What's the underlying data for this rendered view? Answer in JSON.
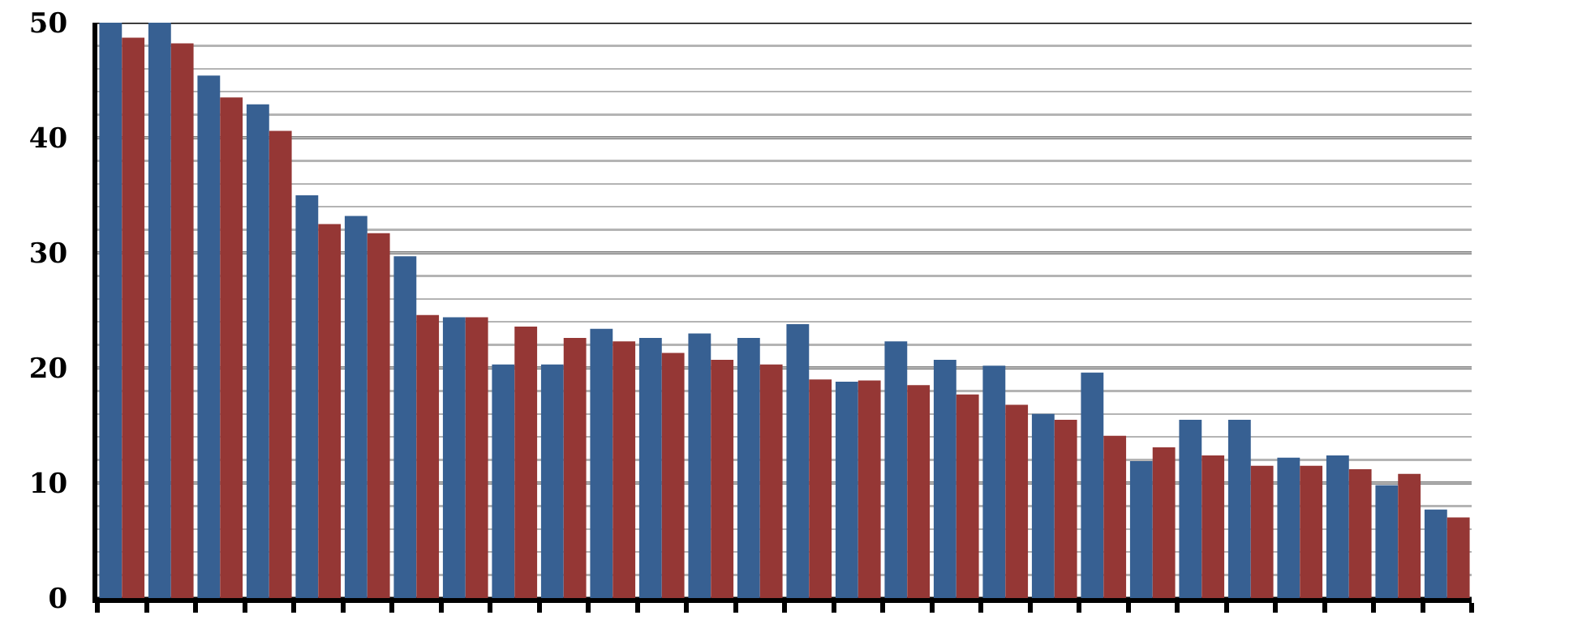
{
  "chart_data": {
    "type": "bar",
    "categories": [
      null,
      null,
      null,
      null,
      null,
      null,
      null,
      null,
      null,
      null,
      null,
      null,
      null,
      null,
      null,
      null,
      null,
      null,
      null,
      null,
      null,
      null,
      null,
      null,
      null,
      null,
      null,
      null
    ],
    "series": [
      {
        "color": "#376092",
        "values": [
          50,
          50,
          45.4,
          42.9,
          35.0,
          33.2,
          29.7,
          24.4,
          20.3,
          20.3,
          23.4,
          22.6,
          23.0,
          22.6,
          23.8,
          18.8,
          22.3,
          20.7,
          20.2,
          16.0,
          19.6,
          11.9,
          15.5,
          15.5,
          12.2,
          12.4,
          9.8,
          7.7
        ]
      },
      {
        "color": "#953735",
        "values": [
          48.7,
          48.2,
          43.5,
          40.6,
          32.5,
          31.7,
          24.6,
          24.4,
          23.6,
          22.6,
          22.3,
          21.3,
          20.7,
          20.3,
          19.0,
          18.9,
          18.5,
          17.7,
          16.8,
          15.5,
          14.1,
          13.1,
          12.4,
          11.5,
          11.5,
          11.2,
          10.8,
          7.0
        ]
      }
    ],
    "ylim": [
      0,
      50
    ],
    "yticks": [
      0,
      {
        "value": 2,
        "label": null
      },
      {
        "value": 4,
        "label": null
      },
      {
        "value": 6,
        "label": null
      },
      {
        "value": 8,
        "label": null
      },
      10,
      {
        "value": 12,
        "label": null
      },
      {
        "value": 14,
        "label": null
      },
      {
        "value": 16,
        "label": null
      },
      {
        "value": 18,
        "label": null
      },
      20,
      {
        "value": 22,
        "label": null
      },
      {
        "value": 24,
        "label": null
      },
      {
        "value": 26,
        "label": null
      },
      {
        "value": 28,
        "label": null
      },
      30,
      {
        "value": 32,
        "label": null
      },
      {
        "value": 34,
        "label": null
      },
      {
        "value": 36,
        "label": null
      },
      {
        "value": 38,
        "label": null
      },
      40,
      {
        "value": 42,
        "label": null
      },
      {
        "value": 44,
        "label": null
      },
      {
        "value": 46,
        "label": null
      },
      {
        "value": 48,
        "label": null
      },
      50
    ],
    "grid": true
  }
}
